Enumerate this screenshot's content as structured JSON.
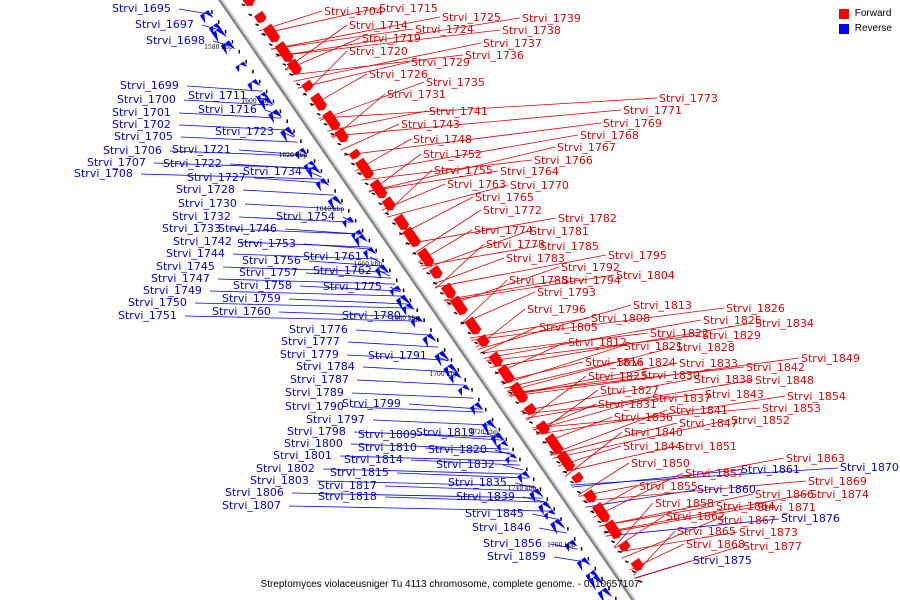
{
  "legend": {
    "forward_label": "Forward",
    "reverse_label": "Reverse",
    "forward_color": "#ff0000",
    "reverse_color": "#0000ff"
  },
  "caption": "Streptomyces violaceusniger Tu 4113 chromosome, complete genome. - 0..10657107",
  "scale_labels": [
    "1580 kbp",
    "1600 kbp",
    "1620 kbp",
    "1640 kbp",
    "1660 kbp",
    "1680 kbp",
    "1700 kbp",
    "1720 kbp",
    "1740 kbp",
    "1760 kbp"
  ],
  "reverse_genes": [
    "Strvi_1695",
    "Strvi_1697",
    "Strvi_1698",
    "Strvi_1699",
    "Strvi_1700",
    "Strvi_1701",
    "Strvi_1702",
    "Strvi_1705",
    "Strvi_1706",
    "Strvi_1707",
    "Strvi_1708",
    "Strvi_1711",
    "Strvi_1716",
    "Strvi_1723",
    "Strvi_1721",
    "Strvi_1722",
    "Strvi_1727",
    "Strvi_1734",
    "Strvi_1728",
    "Strvi_1730",
    "Strvi_1732",
    "Strvi_1754",
    "Strvi_1733",
    "Strvi_1746",
    "Strvi_1742",
    "Strvi_1753",
    "Strvi_1744",
    "Strvi_1761",
    "Strvi_1756",
    "Strvi_1745",
    "Strvi_1757",
    "Strvi_1762",
    "Strvi_1747",
    "Strvi_1758",
    "Strvi_1775",
    "Strvi_1749",
    "Strvi_1759",
    "Strvi_1750",
    "Strvi_1760",
    "Strvi_1751",
    "Strvi_1780",
    "Strvi_1776",
    "Strvi_1777",
    "Strvi_1779",
    "Strvi_1791",
    "Strvi_1784",
    "Strvi_1787",
    "Strvi_1789",
    "Strvi_1799",
    "Strvi_1790",
    "Strvi_1797",
    "Strvi_1798",
    "Strvi_1809",
    "Strvi_1819",
    "Strvi_1800",
    "Strvi_1810",
    "Strvi_1820",
    "Strvi_1801",
    "Strvi_1814",
    "Strvi_1802",
    "Strvi_1832",
    "Strvi_1815",
    "Strvi_1803",
    "Strvi_1835",
    "Strvi_1817",
    "Strvi_1806",
    "Strvi_1839",
    "Strvi_1818",
    "Strvi_1807",
    "Strvi_1845",
    "Strvi_1846",
    "Strvi_1856",
    "Strvi_1859",
    "Strvi_1860",
    "Strvi_1861",
    "Strvi_1870",
    "Strvi_1876",
    "Strvi_1875"
  ],
  "forward_genes": [
    "Strvi_1704",
    "Strvi_1715",
    "Strvi_1725",
    "Strvi_1739",
    "Strvi_1714",
    "Strvi_1724",
    "Strvi_1738",
    "Strvi_1719",
    "Strvi_1737",
    "Strvi_1720",
    "Strvi_1736",
    "Strvi_1729",
    "Strvi_1726",
    "Strvi_1735",
    "Strvi_1731",
    "Strvi_1741",
    "Strvi_1743",
    "Strvi_1748",
    "Strvi_1752",
    "Strvi_1755",
    "Strvi_1764",
    "Strvi_1763",
    "Strvi_1770",
    "Strvi_1765",
    "Strvi_1772",
    "Strvi_1773",
    "Strvi_1771",
    "Strvi_1769",
    "Strvi_1768",
    "Strvi_1767",
    "Strvi_1766",
    "Strvi_1782",
    "Strvi_1774",
    "Strvi_1781",
    "Strvi_1778",
    "Strvi_1785",
    "Strvi_1783",
    "Strvi_1795",
    "Strvi_1792",
    "Strvi_1788",
    "Strvi_1794",
    "Strvi_1804",
    "Strvi_1793",
    "Strvi_1796",
    "Strvi_1813",
    "Strvi_1808",
    "Strvi_1805",
    "Strvi_1826",
    "Strvi_1825",
    "Strvi_1834",
    "Strvi_1822",
    "Strvi_1829",
    "Strvi_1812",
    "Strvi_1821",
    "Strvi_1828",
    "Strvi_1816",
    "Strvi_1824",
    "Strvi_1833",
    "Strvi_1849",
    "Strvi_1823",
    "Strvi_1830",
    "Strvi_1842",
    "Strvi_1838",
    "Strvi_1848",
    "Strvi_1827",
    "Strvi_1843",
    "Strvi_1831",
    "Strvi_1837",
    "Strvi_1854",
    "Strvi_1841",
    "Strvi_1853",
    "Strvi_1836",
    "Strvi_1847",
    "Strvi_1852",
    "Strvi_1840",
    "Strvi_1844",
    "Strvi_1851",
    "Strvi_1850",
    "Strvi_1863",
    "Strvi_1857",
    "Strvi_1869",
    "Strvi_1855",
    "Strvi_1866",
    "Strvi_1874",
    "Strvi_1858",
    "Strvi_1864",
    "Strvi_1871",
    "Strvi_1862",
    "Strvi_1867",
    "Strvi_1865",
    "Strvi_1873",
    "Strvi_1868",
    "Strvi_1877"
  ]
}
